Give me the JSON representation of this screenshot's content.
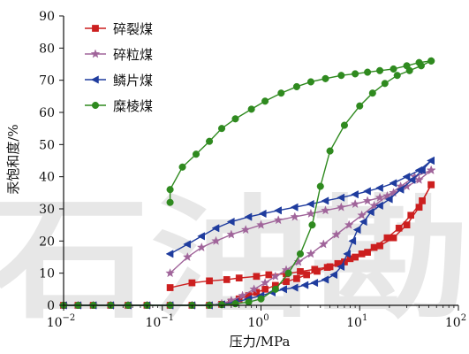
{
  "watermark": "石油勘",
  "chart_data": {
    "type": "line",
    "title": "",
    "xlabel": "压力/MPa",
    "ylabel": "汞饱和度/%",
    "x_scale": "log",
    "xlim": [
      0.01,
      100
    ],
    "ylim": [
      0,
      90
    ],
    "x_ticks": [
      {
        "value": 0.01,
        "base": "10",
        "exp": "−2"
      },
      {
        "value": 0.1,
        "base": "10",
        "exp": "−1"
      },
      {
        "value": 1,
        "base": "10",
        "exp": "0"
      },
      {
        "value": 10,
        "base": "10",
        "exp": "1"
      },
      {
        "value": 100,
        "base": "10",
        "exp": "2"
      }
    ],
    "y_ticks": [
      "0",
      "10",
      "20",
      "30",
      "40",
      "50",
      "60",
      "70",
      "80",
      "90"
    ],
    "legend_position": "top-left",
    "series": [
      {
        "name": "碎裂煤",
        "color": "#cc1f1f",
        "marker": "square",
        "intrusion": [
          [
            0.01,
            0
          ],
          [
            0.014,
            0
          ],
          [
            0.02,
            0
          ],
          [
            0.03,
            0
          ],
          [
            0.045,
            0
          ],
          [
            0.07,
            0
          ],
          [
            0.12,
            0
          ],
          [
            0.2,
            0
          ],
          [
            0.3,
            0
          ],
          [
            0.4,
            0.3
          ],
          [
            0.5,
            1
          ],
          [
            0.6,
            2
          ],
          [
            0.75,
            3
          ],
          [
            0.9,
            4
          ],
          [
            1.1,
            5
          ],
          [
            1.4,
            6.2
          ],
          [
            1.8,
            7.4
          ],
          [
            2.3,
            8.3
          ],
          [
            2.9,
            9.5
          ],
          [
            3.7,
            10.6
          ],
          [
            4.7,
            11.8
          ],
          [
            6,
            13
          ],
          [
            8,
            14.5
          ],
          [
            10.5,
            16
          ],
          [
            14,
            18
          ],
          [
            19,
            21
          ],
          [
            25,
            24
          ],
          [
            33,
            28
          ],
          [
            43,
            32.5
          ],
          [
            53,
            37.5
          ]
        ],
        "extrusion": [
          [
            53,
            37.5
          ],
          [
            40,
            30.5
          ],
          [
            30,
            25
          ],
          [
            22,
            21
          ],
          [
            16,
            18.5
          ],
          [
            12,
            16.5
          ],
          [
            9,
            15
          ],
          [
            7,
            13.5
          ],
          [
            5,
            12
          ],
          [
            3.5,
            11.2
          ],
          [
            2.5,
            10.5
          ],
          [
            1.8,
            9.8
          ],
          [
            1.2,
            9.5
          ],
          [
            0.9,
            9
          ],
          [
            0.6,
            8.5
          ],
          [
            0.45,
            8
          ],
          [
            0.3,
            7.6
          ],
          [
            0.2,
            7
          ],
          [
            0.12,
            5.5
          ]
        ]
      },
      {
        "name": "碎粒煤",
        "color": "#a0649a",
        "marker": "star",
        "intrusion": [
          [
            0.01,
            0
          ],
          [
            0.014,
            0
          ],
          [
            0.02,
            0
          ],
          [
            0.03,
            0
          ],
          [
            0.045,
            0
          ],
          [
            0.07,
            0
          ],
          [
            0.12,
            0
          ],
          [
            0.2,
            0
          ],
          [
            0.3,
            0
          ],
          [
            0.4,
            0.5
          ],
          [
            0.5,
            1.5
          ],
          [
            0.65,
            3
          ],
          [
            0.85,
            5
          ],
          [
            1.1,
            7
          ],
          [
            1.4,
            9
          ],
          [
            1.8,
            11
          ],
          [
            2.4,
            13.5
          ],
          [
            3.2,
            16
          ],
          [
            4.3,
            19
          ],
          [
            5.8,
            22
          ],
          [
            7.8,
            25
          ],
          [
            10.5,
            28
          ],
          [
            14,
            31
          ],
          [
            19,
            34
          ],
          [
            26,
            37
          ],
          [
            36,
            40
          ],
          [
            53,
            42
          ]
        ],
        "extrusion": [
          [
            53,
            42
          ],
          [
            40,
            39
          ],
          [
            30,
            37
          ],
          [
            22,
            35
          ],
          [
            16,
            33.5
          ],
          [
            12,
            32.5
          ],
          [
            9,
            31.5
          ],
          [
            6.5,
            30.5
          ],
          [
            4.5,
            29.5
          ],
          [
            3.2,
            28.5
          ],
          [
            2.2,
            27.5
          ],
          [
            1.5,
            26.5
          ],
          [
            1,
            25
          ],
          [
            0.7,
            23.5
          ],
          [
            0.5,
            22
          ],
          [
            0.35,
            20
          ],
          [
            0.25,
            18
          ],
          [
            0.18,
            15
          ],
          [
            0.12,
            10
          ]
        ]
      },
      {
        "name": "鳞片煤",
        "color": "#1f3c9e",
        "marker": "triangle-left",
        "intrusion": [
          [
            0.01,
            0
          ],
          [
            0.014,
            0
          ],
          [
            0.02,
            0
          ],
          [
            0.03,
            0
          ],
          [
            0.045,
            0
          ],
          [
            0.07,
            0
          ],
          [
            0.12,
            0
          ],
          [
            0.2,
            0
          ],
          [
            0.3,
            0
          ],
          [
            0.4,
            0.3
          ],
          [
            0.55,
            1
          ],
          [
            0.75,
            2
          ],
          [
            1,
            3
          ],
          [
            1.3,
            4
          ],
          [
            1.7,
            5
          ],
          [
            2.2,
            5.5
          ],
          [
            2.8,
            6.3
          ],
          [
            3.5,
            7
          ],
          [
            4.5,
            8
          ],
          [
            5.5,
            9.5
          ],
          [
            6.5,
            12
          ],
          [
            7.5,
            16
          ],
          [
            8.5,
            20
          ],
          [
            9.5,
            23.5
          ],
          [
            11,
            26
          ],
          [
            13,
            29
          ],
          [
            16,
            31
          ],
          [
            20,
            33
          ],
          [
            26,
            36
          ],
          [
            34,
            39
          ],
          [
            43,
            42
          ],
          [
            53,
            45
          ]
        ],
        "extrusion": [
          [
            53,
            45
          ],
          [
            40,
            42
          ],
          [
            30,
            40
          ],
          [
            22,
            38
          ],
          [
            16,
            36.5
          ],
          [
            12,
            35.5
          ],
          [
            9,
            34.5
          ],
          [
            6.5,
            33.5
          ],
          [
            4.5,
            32.5
          ],
          [
            3.2,
            31.5
          ],
          [
            2.2,
            30.5
          ],
          [
            1.5,
            29.5
          ],
          [
            1.05,
            28.5
          ],
          [
            0.75,
            27.5
          ],
          [
            0.5,
            26
          ],
          [
            0.35,
            24
          ],
          [
            0.25,
            21.5
          ],
          [
            0.18,
            19
          ],
          [
            0.12,
            16
          ]
        ]
      },
      {
        "name": "糜棱煤",
        "color": "#2f8a1f",
        "marker": "circle",
        "intrusion": [
          [
            0.01,
            0
          ],
          [
            0.014,
            0
          ],
          [
            0.02,
            0
          ],
          [
            0.03,
            0
          ],
          [
            0.045,
            0
          ],
          [
            0.07,
            0
          ],
          [
            0.12,
            0
          ],
          [
            0.2,
            0
          ],
          [
            0.3,
            0
          ],
          [
            0.4,
            0.2
          ],
          [
            0.55,
            0.5
          ],
          [
            0.75,
            1
          ],
          [
            1,
            2
          ],
          [
            1.4,
            5
          ],
          [
            1.9,
            10
          ],
          [
            2.5,
            16
          ],
          [
            3.3,
            25
          ],
          [
            4,
            37
          ],
          [
            5,
            48
          ],
          [
            7,
            56
          ],
          [
            10,
            62
          ],
          [
            13.5,
            66
          ],
          [
            18,
            69
          ],
          [
            24,
            71.5
          ],
          [
            32,
            73
          ],
          [
            42,
            74.5
          ],
          [
            53,
            76
          ]
        ],
        "extrusion": [
          [
            53,
            76
          ],
          [
            40,
            75.5
          ],
          [
            30,
            74.5
          ],
          [
            22,
            73.5
          ],
          [
            16,
            73
          ],
          [
            12,
            72.5
          ],
          [
            9,
            72
          ],
          [
            6.5,
            71.5
          ],
          [
            4.5,
            70.5
          ],
          [
            3.2,
            69.5
          ],
          [
            2.3,
            68
          ],
          [
            1.6,
            66
          ],
          [
            1.1,
            63.5
          ],
          [
            0.8,
            61
          ],
          [
            0.55,
            58
          ],
          [
            0.4,
            55
          ],
          [
            0.3,
            51
          ],
          [
            0.22,
            47
          ],
          [
            0.16,
            43
          ],
          [
            0.12,
            36
          ],
          [
            0.12,
            32
          ]
        ]
      }
    ]
  }
}
